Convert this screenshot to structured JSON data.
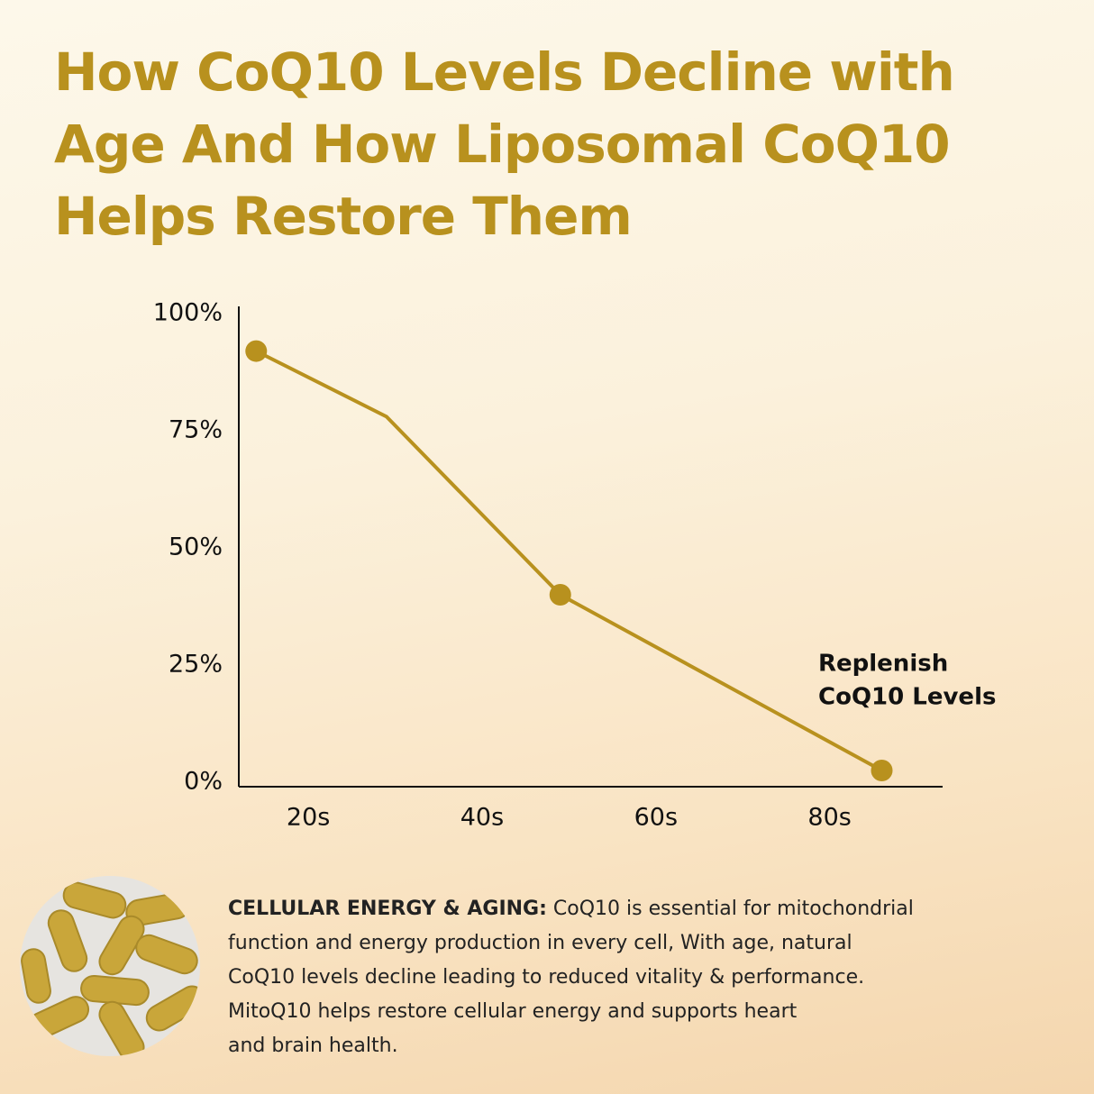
{
  "chart_data": {
    "type": "line",
    "title": "How CoQ10 Levels Decline with Age And How Liposomal CoQ10 Helps Restore Them",
    "x": [
      14,
      29,
      49,
      86
    ],
    "series": [
      {
        "color": "#b8911e",
        "values": [
          92,
          78,
          40,
          2.5
        ],
        "markers": [
          true,
          false,
          true,
          true
        ]
      }
    ],
    "xlim": [
      12,
      93
    ],
    "xticks": [
      {
        "value": 20,
        "label": "20s"
      },
      {
        "value": 40,
        "label": "40s"
      },
      {
        "value": 60,
        "label": "60s"
      },
      {
        "value": 80,
        "label": "80s"
      }
    ],
    "ylim": [
      0,
      100
    ],
    "yticks": [
      {
        "value": 0,
        "label": "0%"
      },
      {
        "value": 25,
        "label": "25%"
      },
      {
        "value": 50,
        "label": "50%"
      },
      {
        "value": 75,
        "label": "75%"
      },
      {
        "value": 100,
        "label": "100%"
      }
    ],
    "grid": false,
    "annotation": [
      "Replenish",
      "CoQ10 Levels"
    ]
  },
  "description": {
    "lead": "CELLULAR ENERGY & AGING:",
    "lines": [
      " CoQ10 is essential for mitochondrial",
      "function and energy production in every cell, With age, natural",
      "CoQ10 levels decline leading to reduced vitality & performance.",
      "MitoQ10 helps restore cellular energy and supports heart",
      "and brain health."
    ]
  }
}
